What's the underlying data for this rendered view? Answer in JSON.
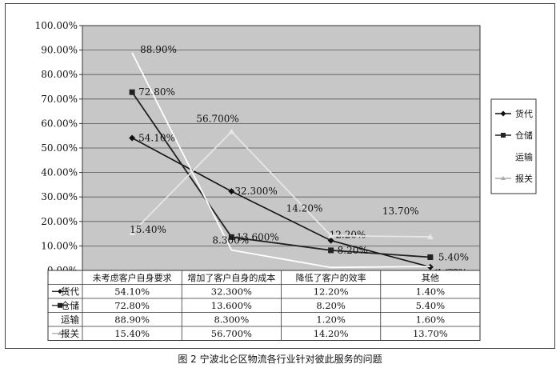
{
  "caption": "图 2    宁波北仑区物流各行业针对彼此服务的问题",
  "chart_data": {
    "type": "line",
    "categories": [
      "未考虑客户自身要求",
      "增加了客户自身的成本",
      "降低了客户的效率",
      "其他"
    ],
    "ylim": [
      0,
      100
    ],
    "y_ticks": [
      "0.00%",
      "10.00%",
      "20.00%",
      "30.00%",
      "40.00%",
      "50.00%",
      "60.00%",
      "70.00%",
      "80.00%",
      "90.00%",
      "100.00%"
    ],
    "grid": true,
    "legend_position": "right",
    "series": [
      {
        "name": "货代",
        "values": [
          54.1,
          32.3,
          12.2,
          1.4
        ],
        "labels": [
          "54.10%",
          "32.300%",
          "12.20%",
          "1.40%"
        ],
        "color": "#111111",
        "marker": "diamond"
      },
      {
        "name": "仓储",
        "values": [
          72.8,
          13.6,
          8.2,
          5.4
        ],
        "labels": [
          "72.80%",
          "13.600%",
          "8.20%",
          "5.40%"
        ],
        "color": "#222222",
        "marker": "square"
      },
      {
        "name": "运输",
        "values": [
          88.9,
          8.3,
          1.2,
          1.6
        ],
        "labels": [
          "88.90%",
          "8.300%",
          "1.20%",
          "1.60%"
        ],
        "color": "#ffffff",
        "marker": "none"
      },
      {
        "name": "报关",
        "values": [
          15.4,
          56.7,
          14.2,
          13.7
        ],
        "labels": [
          "15.40%",
          "56.700%",
          "14.20%",
          "13.70%"
        ],
        "color": "#e6e6e6",
        "marker": "triangle"
      }
    ],
    "table": {
      "rows": [
        [
          "54.10%",
          "32.300%",
          "12.20%",
          "1.40%"
        ],
        [
          "72.80%",
          "13.600%",
          "8.20%",
          "5.40%"
        ],
        [
          "88.90%",
          "8.300%",
          "1.20%",
          "1.60%"
        ],
        [
          "15.40%",
          "56.700%",
          "14.20%",
          "13.70%"
        ]
      ]
    }
  }
}
